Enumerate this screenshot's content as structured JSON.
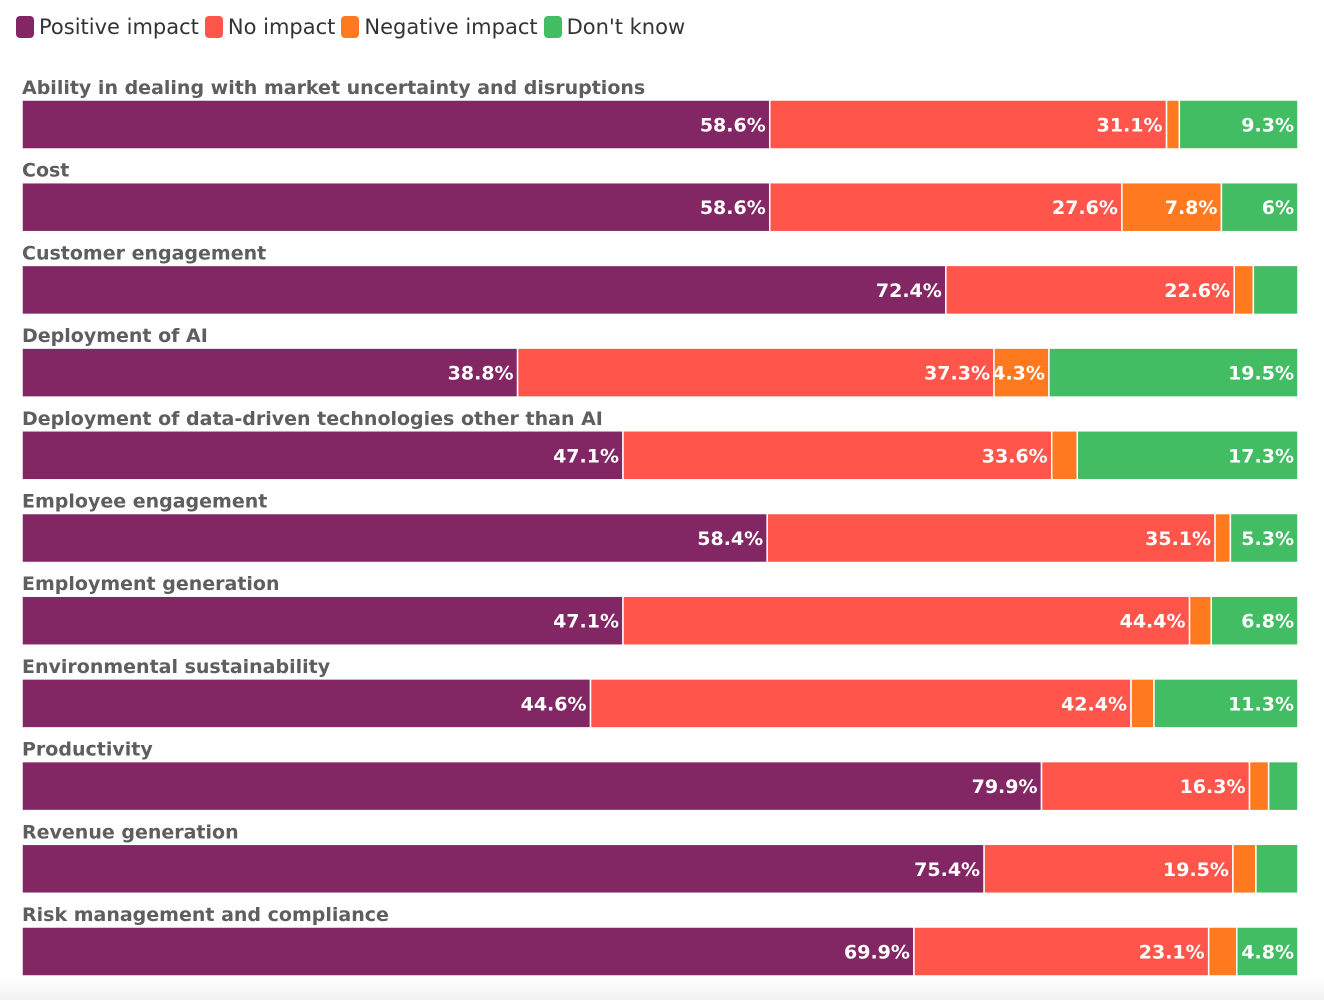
{
  "chart_data": {
    "type": "bar",
    "orientation": "horizontal",
    "stacked": true,
    "legend_position": "top-left",
    "series": [
      {
        "name": "Positive impact",
        "color": "#822764",
        "values": [
          58.6,
          58.6,
          72.4,
          38.8,
          47.1,
          58.4,
          47.1,
          44.6,
          79.9,
          75.4,
          69.9
        ]
      },
      {
        "name": "No impact",
        "color": "#ff554a",
        "values": [
          31.1,
          27.6,
          22.6,
          37.3,
          33.6,
          35.1,
          44.4,
          42.4,
          16.3,
          19.5,
          23.1
        ]
      },
      {
        "name": "Negative impact",
        "color": "#ff7a1e",
        "values": [
          1.0,
          7.8,
          1.5,
          4.3,
          2.0,
          1.2,
          1.7,
          1.8,
          1.5,
          1.8,
          2.2
        ]
      },
      {
        "name": "Don't know",
        "color": "#42bd63",
        "values": [
          9.3,
          6.0,
          3.5,
          19.5,
          17.3,
          5.3,
          6.8,
          11.3,
          2.3,
          3.3,
          4.8
        ]
      }
    ],
    "categories": [
      "Ability in dealing with market uncertainty and disruptions",
      "Cost",
      "Customer engagement",
      "Deployment of AI",
      "Deployment of data-driven technologies other than AI",
      "Employee engagement",
      "Employment generation",
      "Environmental sustainability",
      "Productivity",
      "Revenue generation",
      "Risk management and compliance"
    ],
    "data_labels": [
      [
        "58.6%",
        "31.1%",
        "",
        "9.3%"
      ],
      [
        "58.6%",
        "27.6%",
        "7.8%",
        "6%"
      ],
      [
        "72.4%",
        "22.6%",
        "",
        ""
      ],
      [
        "38.8%",
        "37.3%",
        "4.3%",
        "19.5%"
      ],
      [
        "47.1%",
        "33.6%",
        "",
        "17.3%"
      ],
      [
        "58.4%",
        "35.1%",
        "",
        "5.3%"
      ],
      [
        "47.1%",
        "44.4%",
        "",
        "6.8%"
      ],
      [
        "44.6%",
        "42.4%",
        "",
        "11.3%"
      ],
      [
        "79.9%",
        "16.3%",
        "",
        ""
      ],
      [
        "75.4%",
        "19.5%",
        "",
        ""
      ],
      [
        "69.9%",
        "23.1%",
        "",
        "4.8%"
      ]
    ],
    "xlim": [
      0,
      100
    ]
  }
}
